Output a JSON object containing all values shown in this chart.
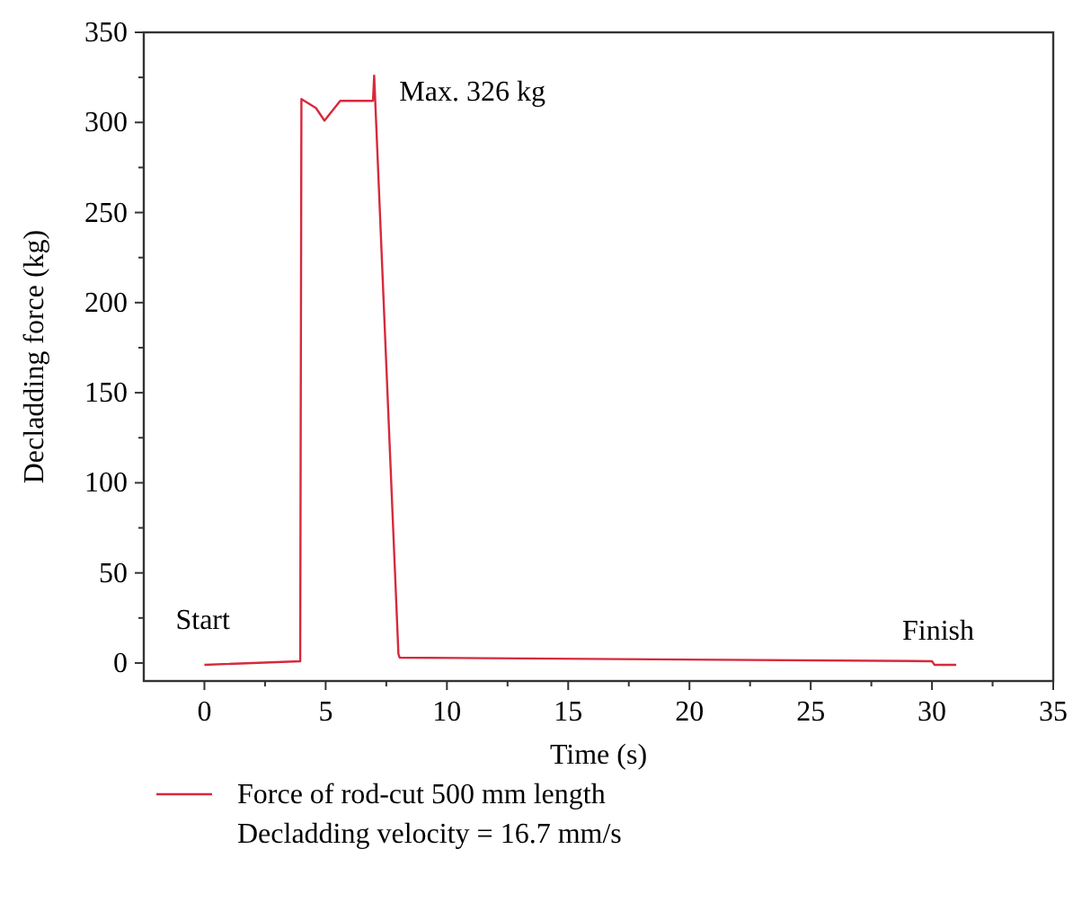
{
  "chart_data": {
    "type": "line",
    "xlabel": "Time (s)",
    "ylabel": "Decladding force (kg)",
    "xlim": [
      -2.5,
      35
    ],
    "xticks": [
      0,
      5,
      10,
      15,
      20,
      25,
      30,
      35
    ],
    "ylim": [
      -10,
      350
    ],
    "yticks": [
      0,
      50,
      100,
      150,
      200,
      250,
      300,
      350
    ],
    "series": [
      {
        "name": "Force of rod-cut 500 mm length\nDecladding velocity = 16.7 mm/s",
        "color": "#d62a3c",
        "x": [
          0,
          3.95,
          4,
          4.6,
          4.95,
          5.6,
          6.9,
          6.95,
          7,
          8,
          8.05,
          30,
          30.1,
          31
        ],
        "values": [
          -1,
          1,
          313,
          308,
          301,
          312,
          312,
          312,
          326,
          5,
          3,
          1,
          -1,
          -1
        ]
      }
    ],
    "annotations": [
      {
        "text": "Max. 326 kg",
        "x": 7,
        "y": 326
      },
      {
        "text": "Start",
        "x": 0,
        "y": -1
      },
      {
        "text": "Finish",
        "x": 31,
        "y": -1
      }
    ],
    "legend": "bottom",
    "grid": false,
    "line_style": "solid",
    "marker": "none"
  }
}
